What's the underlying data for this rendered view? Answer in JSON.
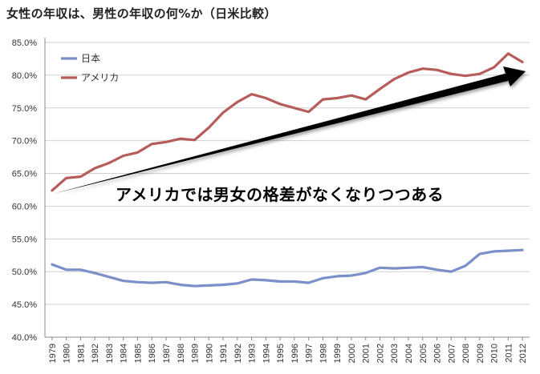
{
  "chart_data": {
    "type": "line",
    "title": "女性の年収は、男性の年収の何%か（日米比較）",
    "annotation": "アメリカでは男女の格差がなくなりつつある",
    "x": [
      "1979",
      "1980",
      "1981",
      "1982",
      "1983",
      "1984",
      "1985",
      "1986",
      "1987",
      "1988",
      "1989",
      "1990",
      "1991",
      "1992",
      "1993",
      "1994",
      "1995",
      "1996",
      "1997",
      "1998",
      "1999",
      "2000",
      "2001",
      "2002",
      "2003",
      "2004",
      "2005",
      "2006",
      "2007",
      "2008",
      "2009",
      "2010",
      "2011",
      "2012"
    ],
    "ylim": [
      40,
      85
    ],
    "yticks": [
      40,
      45,
      50,
      55,
      60,
      65,
      70,
      75,
      80,
      85
    ],
    "ytick_labels": [
      "40.0%",
      "45.0%",
      "50.0%",
      "55.0%",
      "60.0%",
      "65.0%",
      "70.0%",
      "75.0%",
      "80.0%",
      "85.0%"
    ],
    "grid": true,
    "legend_position": "top-left",
    "series": [
      {
        "name": "日本",
        "color": "#7b8fc8",
        "values": [
          51.1,
          50.3,
          50.3,
          49.8,
          49.2,
          48.6,
          48.4,
          48.3,
          48.4,
          48.0,
          47.8,
          47.9,
          48.0,
          48.2,
          48.8,
          48.7,
          48.5,
          48.5,
          48.3,
          49.0,
          49.3,
          49.4,
          49.8,
          50.6,
          50.5,
          50.6,
          50.7,
          50.3,
          50.0,
          50.9,
          52.7,
          53.1,
          53.2,
          53.3
        ]
      },
      {
        "name": "アメリカ",
        "color": "#b65c5a",
        "values": [
          62.4,
          64.3,
          64.5,
          65.8,
          66.6,
          67.7,
          68.2,
          69.5,
          69.8,
          70.3,
          70.1,
          72.0,
          74.3,
          75.9,
          77.1,
          76.5,
          75.6,
          75.0,
          74.4,
          76.3,
          76.5,
          76.9,
          76.3,
          77.9,
          79.4,
          80.4,
          81.0,
          80.8,
          80.2,
          79.9,
          80.2,
          81.2,
          83.3,
          82.0
        ]
      }
    ]
  },
  "arrow": {
    "color": "#000000"
  }
}
